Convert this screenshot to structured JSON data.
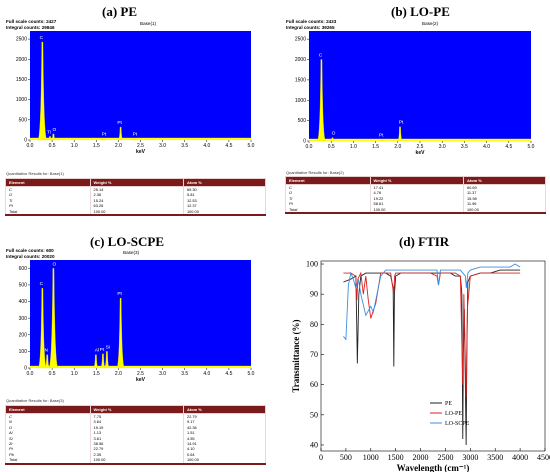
{
  "chart_data": [
    {
      "type": "bar",
      "panel_title": "(a) PE",
      "full_scale": "Full scale counts: 2427",
      "integral": "Integral counts: 29846",
      "base": "Base(1)",
      "xlabel": "keV",
      "ylim": [
        0,
        2700
      ],
      "xlim": [
        0,
        5
      ],
      "yticks": [
        "0",
        "500",
        "1000",
        "1500",
        "2000",
        "2500"
      ],
      "xticks": [
        "0.0",
        "0.5",
        "1.0",
        "1.5",
        "2.0",
        "2.5",
        "3.0",
        "3.5",
        "4.0",
        "4.5",
        "5.0"
      ],
      "peaks": [
        {
          "label": "C",
          "x": 0.28,
          "y": 2427
        },
        {
          "label": "O",
          "x": 0.53,
          "y": 150
        },
        {
          "label": "Ti",
          "x": 0.45,
          "y": 90
        },
        {
          "label": "Pt",
          "x": 1.65,
          "y": 40
        },
        {
          "label": "Pt",
          "x": 2.05,
          "y": 320
        },
        {
          "label": "Pt",
          "x": 2.35,
          "y": 40
        }
      ],
      "quant_caption": "Quantitative Results for: Base(1)",
      "table_headers": [
        "Element",
        "Weight %",
        "Atom %"
      ],
      "table_rows": [
        [
          "C",
          "25.14",
          "69.30"
        ],
        [
          "O",
          "2.36",
          "5.81"
        ],
        [
          "Ti",
          "15.24",
          "12.53"
        ],
        [
          "Pt",
          "63.26",
          "12.37"
        ],
        [
          "Total",
          "100.00",
          "100.00"
        ]
      ]
    },
    {
      "type": "bar",
      "panel_title": "(b) LO-PE",
      "full_scale": "Full scale counts: 2433",
      "integral": "Integral counts: 39265",
      "base": "Base(2)",
      "xlabel": "keV",
      "ylim": [
        0,
        2700
      ],
      "xlim": [
        0,
        5
      ],
      "yticks": [
        "0",
        "500",
        "1000",
        "1500",
        "2000",
        "2500"
      ],
      "xticks": [
        "0.0",
        "0.5",
        "1.0",
        "1.5",
        "2.0",
        "2.5",
        "3.0",
        "3.5",
        "4.0",
        "4.5",
        "5.0"
      ],
      "peaks": [
        {
          "label": "C",
          "x": 0.28,
          "y": 2000
        },
        {
          "label": "O",
          "x": 0.53,
          "y": 80
        },
        {
          "label": "Pt",
          "x": 1.65,
          "y": 40
        },
        {
          "label": "Pt",
          "x": 2.05,
          "y": 350
        }
      ],
      "quant_caption": "Quantitative Results for: Base(2)",
      "table_headers": [
        "Element",
        "Weight %",
        "Atom %"
      ],
      "table_rows": [
        [
          "C",
          "17.41",
          "60.69"
        ],
        [
          "O",
          "4.76",
          "11.37"
        ],
        [
          "Ti",
          "19.22",
          "15.98"
        ],
        [
          "Pt",
          "58.61",
          "11.96"
        ],
        [
          "Total",
          "100.00",
          "100.00"
        ]
      ]
    },
    {
      "type": "bar",
      "panel_title": "(c) LO-SCPE",
      "full_scale": "Full scale counts: 600",
      "integral": "Integral counts: 20020",
      "base": "Base(3)",
      "xlabel": "keV",
      "ylim": [
        0,
        650
      ],
      "xlim": [
        0,
        5
      ],
      "yticks": [
        "0",
        "100",
        "200",
        "300",
        "400",
        "500",
        "600"
      ],
      "xticks": [
        "0.0",
        "0.5",
        "1.0",
        "1.5",
        "2.0",
        "2.5",
        "3.0",
        "3.5",
        "4.0",
        "4.5",
        "5.0"
      ],
      "peaks": [
        {
          "label": "C",
          "x": 0.28,
          "y": 480
        },
        {
          "label": "O",
          "x": 0.53,
          "y": 600
        },
        {
          "label": "N",
          "x": 0.39,
          "y": 80
        },
        {
          "label": "Al",
          "x": 1.49,
          "y": 80
        },
        {
          "label": "Pt",
          "x": 1.65,
          "y": 85
        },
        {
          "label": "Si",
          "x": 1.74,
          "y": 100
        },
        {
          "label": "Pt",
          "x": 2.05,
          "y": 420
        }
      ],
      "quant_caption": "Quantitative Results for: Base(3)",
      "table_headers": [
        "Element",
        "Weight %",
        "Atom %"
      ],
      "table_rows": [
        [
          "C",
          "7.75",
          "22.79"
        ],
        [
          "N",
          "3.64",
          "9.17"
        ],
        [
          "O",
          "19.19",
          "42.36"
        ],
        [
          "Al",
          "1.13",
          "1.51"
        ],
        [
          "Si",
          "3.61",
          "4.55"
        ],
        [
          "Zr",
          "38.56",
          "14.91"
        ],
        [
          "Pt",
          "22.79",
          "4.10"
        ],
        [
          "Pb",
          "2.35",
          "0.64"
        ],
        [
          "Total",
          "100.00",
          "100.00"
        ]
      ]
    },
    {
      "type": "line",
      "panel_title": "(d) FTIR",
      "xlabel": "Wavelength (cm⁻¹)",
      "ylabel": "Transmittance (%)",
      "xlim": [
        0,
        4500
      ],
      "ylim": [
        38,
        101
      ],
      "xticks": [
        "0",
        "500",
        "1000",
        "1500",
        "2000",
        "2500",
        "3000",
        "3500",
        "4000",
        "4500"
      ],
      "yticks": [
        "40",
        "50",
        "60",
        "70",
        "80",
        "90",
        "100"
      ],
      "series": [
        {
          "name": "PE",
          "color": "#222222",
          "x": [
            450,
            600,
            700,
            718,
            730,
            760,
            800,
            900,
            1000,
            1100,
            1200,
            1300,
            1400,
            1450,
            1463,
            1475,
            1500,
            1600,
            1800,
            2000,
            2200,
            2300,
            2400,
            2500,
            2600,
            2700,
            2800,
            2830,
            2848,
            2860,
            2880,
            2900,
            2916,
            2930,
            2950,
            3000,
            3200,
            3400,
            3600,
            3800,
            3900,
            4000
          ],
          "y": [
            94,
            95,
            96,
            80,
            67,
            90,
            96,
            97,
            97,
            97,
            97,
            97,
            96,
            92,
            66,
            90,
            96,
            97,
            97,
            97,
            97,
            97,
            97,
            97,
            97,
            96,
            96,
            90,
            42,
            70,
            85,
            60,
            40,
            70,
            94,
            96,
            97,
            97,
            98,
            98,
            98,
            98
          ]
        },
        {
          "name": "LO-PE",
          "color": "#dd2222",
          "x": [
            450,
            600,
            700,
            720,
            740,
            800,
            850,
            900,
            950,
            1000,
            1100,
            1200,
            1300,
            1400,
            1460,
            1480,
            1500,
            1600,
            1800,
            2000,
            2200,
            2330,
            2360,
            2400,
            2500,
            2700,
            2800,
            2848,
            2870,
            2916,
            2940,
            3000,
            3200,
            3400,
            3600,
            3800,
            3900,
            4000
          ],
          "y": [
            97,
            97,
            96,
            88,
            95,
            97,
            90,
            96,
            88,
            82,
            87,
            97,
            97,
            97,
            90,
            96,
            97,
            97,
            97,
            97,
            97,
            96,
            93,
            97,
            97,
            97,
            96,
            60,
            90,
            56,
            85,
            96,
            97,
            97,
            97,
            97,
            97,
            97
          ]
        },
        {
          "name": "LO-SCPE",
          "color": "#3a8fe0",
          "x": [
            450,
            500,
            550,
            600,
            650,
            700,
            750,
            800,
            900,
            1000,
            1050,
            1100,
            1200,
            1300,
            1400,
            1500,
            1600,
            1800,
            2000,
            2200,
            2330,
            2360,
            2400,
            2500,
            2700,
            2800,
            2850,
            2900,
            2920,
            2950,
            3000,
            3200,
            3400,
            3600,
            3800,
            3900,
            4000
          ],
          "y": [
            76,
            75,
            93,
            97,
            95,
            92,
            95,
            90,
            83,
            86,
            84,
            88,
            96,
            98,
            98,
            98,
            98,
            98,
            98,
            98,
            98,
            93,
            98,
            98,
            98,
            98,
            97,
            96,
            92,
            97,
            98,
            99,
            99,
            99,
            99,
            100,
            99
          ]
        }
      ]
    }
  ]
}
